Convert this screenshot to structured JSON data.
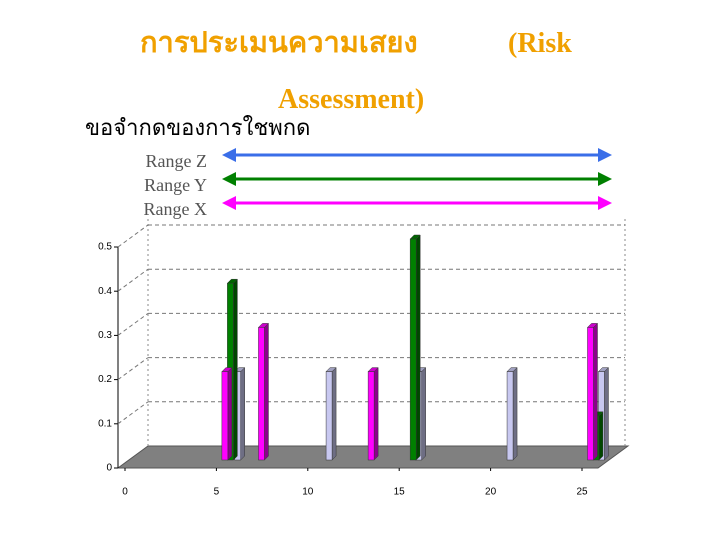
{
  "slide": {
    "title": [
      "การประเมนความเสยง",
      "(Risk",
      "Assessment)"
    ],
    "subtitle": "ขอจำกดของการใชพกด"
  },
  "chart_data": {
    "type": "bar3d",
    "series": [
      {
        "name": "Range Z",
        "color": "#c8c8f0",
        "legend_color": "#3a6ee8",
        "x": [
          6,
          11,
          15.9,
          20.9,
          25.9
        ],
        "values": [
          0.2,
          0.2,
          0.2,
          0.2,
          0.2
        ]
      },
      {
        "name": "Range Y",
        "color": "#008000",
        "legend_color": "#008000",
        "x": [
          5.6,
          15.6,
          25.6
        ],
        "values": [
          0.4,
          0.5,
          0.1
        ]
      },
      {
        "name": "Range X",
        "color": "#ff00ff",
        "legend_color": "#ff00ff",
        "x": [
          5.3,
          7.3,
          13.3,
          25.3
        ],
        "values": [
          0.2,
          0.3,
          0.2,
          0.3
        ]
      }
    ],
    "xlim": [
      0,
      25
    ],
    "xticks": [
      0,
      5,
      10,
      15,
      20,
      25
    ],
    "ylim": [
      0,
      0.5
    ],
    "yticks": [
      0,
      0.1,
      0.2,
      0.3,
      0.4,
      0.5
    ],
    "grid": true
  }
}
